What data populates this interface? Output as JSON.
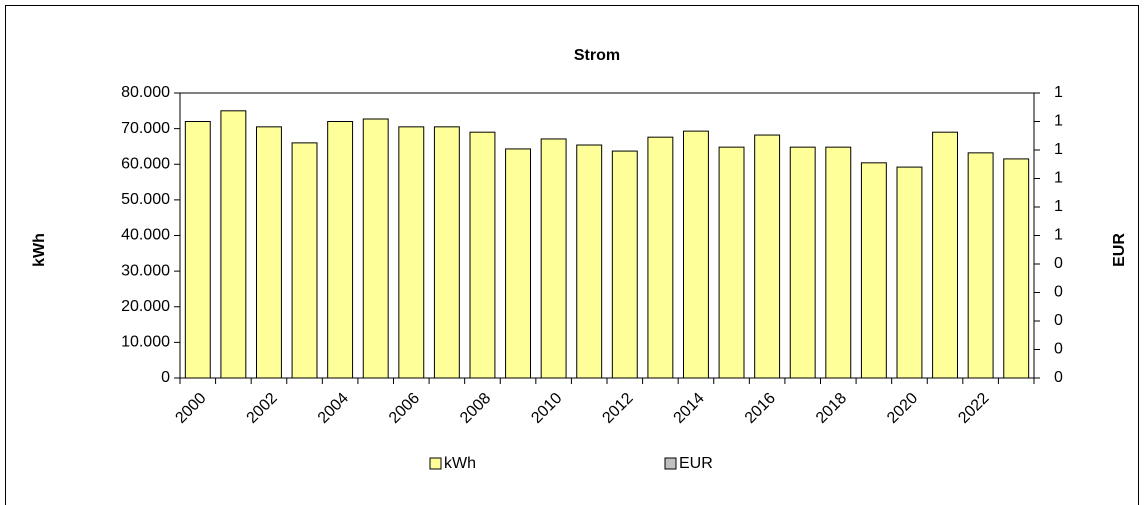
{
  "chart_data": {
    "type": "bar",
    "title": "Strom",
    "y_label": "kWh",
    "y2_label": "EUR",
    "categories": [
      "2000",
      null,
      "2002",
      null,
      "2004",
      null,
      "2006",
      null,
      "2008",
      null,
      "2010",
      null,
      "2012",
      null,
      "2014",
      null,
      "2016",
      null,
      "2018",
      null,
      "2020",
      null,
      "2022",
      null
    ],
    "series": [
      {
        "name": "kWh",
        "color": "#ffff99",
        "values": [
          72000,
          75000,
          70500,
          66000,
          72000,
          72700,
          70500,
          70500,
          69000,
          64300,
          67100,
          65400,
          63700,
          67600,
          69300,
          64800,
          68200,
          64800,
          64800,
          60400,
          59200,
          69000,
          63200,
          61500
        ]
      },
      {
        "name": "EUR",
        "color": "#c0c0c0",
        "axis": "y2",
        "values": [
          null,
          null,
          null,
          null,
          null,
          null,
          null,
          null,
          null,
          null,
          null,
          null,
          null,
          null,
          null,
          null,
          null,
          null,
          null,
          null,
          null,
          null,
          null,
          null
        ]
      }
    ],
    "ylim": [
      0,
      80000
    ],
    "yticks": [
      0,
      {
        "value": 10000,
        "label": "10.000"
      },
      {
        "value": 20000,
        "label": "20.000"
      },
      {
        "value": 30000,
        "label": "30.000"
      },
      {
        "value": 40000,
        "label": "40.000"
      },
      {
        "value": 50000,
        "label": "50.000"
      },
      {
        "value": 60000,
        "label": "60.000"
      },
      {
        "value": 70000,
        "label": "70.000"
      },
      {
        "value": 80000,
        "label": "80.000"
      }
    ],
    "y2lim": [
      0,
      1
    ],
    "y2ticks": [
      0,
      {
        "value": 0.1,
        "label": "0"
      },
      {
        "value": 0.2,
        "label": "0"
      },
      {
        "value": 0.3,
        "label": "0"
      },
      {
        "value": 0.4,
        "label": "0"
      },
      {
        "value": 0.5,
        "label": "1"
      },
      {
        "value": 0.6,
        "label": "1"
      },
      {
        "value": 0.7,
        "label": "1"
      },
      {
        "value": 0.8,
        "label": "1"
      },
      {
        "value": 0.9,
        "label": "1"
      },
      1
    ],
    "legend": "bottom"
  }
}
